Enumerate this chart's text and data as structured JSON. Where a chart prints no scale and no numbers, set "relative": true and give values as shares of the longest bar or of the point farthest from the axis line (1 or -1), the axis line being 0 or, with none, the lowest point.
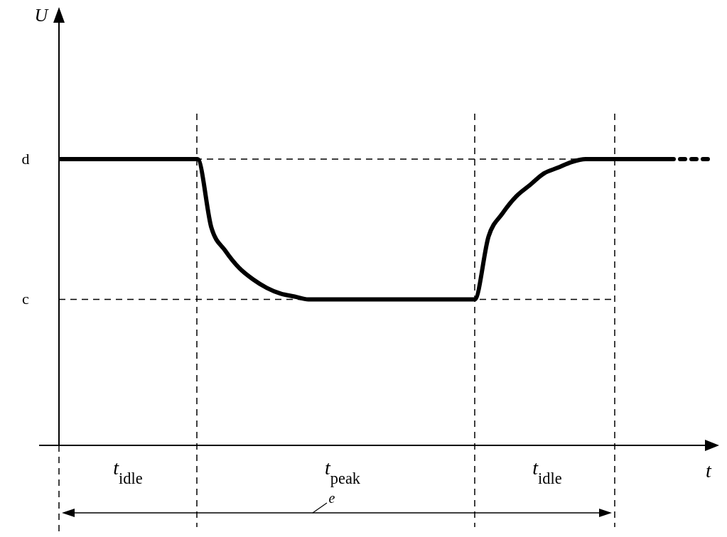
{
  "chart_data": {
    "type": "line",
    "relative": true,
    "xlabel": "t",
    "categories": [
      null,
      null,
      null,
      null,
      null,
      null,
      null,
      null,
      null,
      null,
      null,
      null,
      null,
      null,
      null,
      null,
      null,
      null,
      null,
      null,
      null,
      null,
      null,
      null,
      null,
      null,
      null,
      null,
      null,
      null,
      null,
      null,
      null,
      null,
      null,
      null,
      null,
      null,
      null,
      null,
      null,
      null,
      null,
      null,
      null,
      null,
      null,
      null
    ],
    "series": [
      {
        "color": "#000000",
        "values": [
          1,
          1,
          1,
          1,
          1,
          1,
          1,
          1,
          1,
          1,
          1,
          0.76,
          0.68,
          0.62,
          0.58,
          0.55,
          0.53,
          0.52,
          0.51,
          0.51,
          0.51,
          0.51,
          0.51,
          0.51,
          0.51,
          0.51,
          0.51,
          0.51,
          0.51,
          0.51,
          0.51,
          0.73,
          0.81,
          0.87,
          0.91,
          0.95,
          0.97,
          0.99,
          1,
          1,
          1,
          1,
          1,
          1,
          1,
          null,
          null,
          null
        ]
      },
      {
        "color": "#000000",
        "line_style": "dotted",
        "values": [
          null,
          null,
          null,
          null,
          null,
          null,
          null,
          null,
          null,
          null,
          null,
          null,
          null,
          null,
          null,
          null,
          null,
          null,
          null,
          null,
          null,
          null,
          null,
          null,
          null,
          null,
          null,
          null,
          null,
          null,
          null,
          null,
          null,
          null,
          null,
          null,
          null,
          null,
          null,
          null,
          null,
          null,
          null,
          null,
          1,
          1,
          1,
          1
        ]
      }
    ],
    "line_style": "solid",
    "marker": "none",
    "grid": false,
    "ref_lines": [
      {
        "axis": "y",
        "value": 1,
        "label": "d",
        "line_style": "dashed",
        "color": "#000000"
      },
      {
        "axis": "y",
        "value": 0.51,
        "label": "c",
        "line_style": "dashed",
        "color": "#000000"
      }
    ],
    "annotations": [
      "t$_{idle}$",
      "t$_{peak}$",
      "t$_{idle}$",
      "e",
      "U"
    ]
  }
}
